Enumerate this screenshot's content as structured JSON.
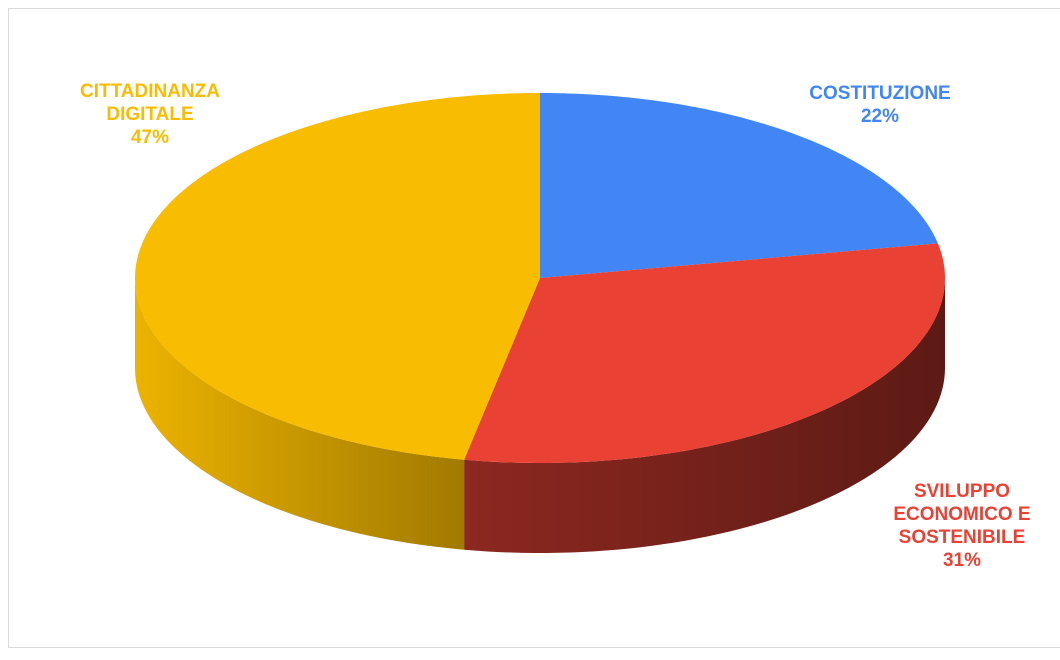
{
  "chart_data": {
    "type": "pie3d",
    "categories": [
      "COSTITUZIONE",
      "SVILUPPO ECONOMICO E SOSTENIBILE",
      "CITTADINANZA DIGITALE"
    ],
    "values": [
      22,
      31,
      47
    ],
    "value_labels": [
      "22%",
      "31%",
      "47%"
    ],
    "colors": [
      "#4285f4",
      "#e94235",
      "#f8bc00"
    ]
  }
}
